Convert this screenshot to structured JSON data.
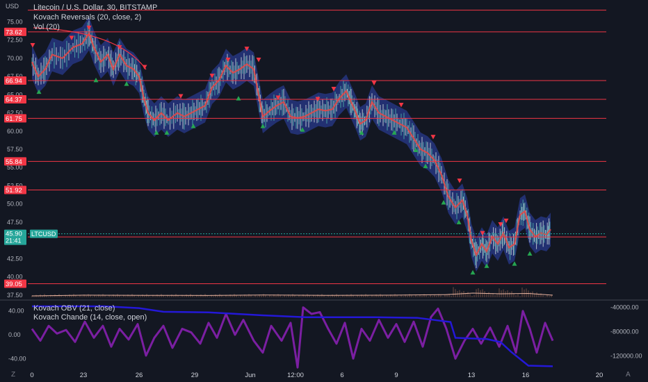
{
  "chart_data": [
    {
      "type": "candlestick",
      "symbol_title": "Litecoin / U.S. Dollar, 30, BITSTAMP",
      "indicators": [
        "Kovach Reversals (20, close, 2)",
        "Vol (20)"
      ],
      "unit": "USD",
      "y_axis_side": "left",
      "ylim": [
        37.0,
        78.0
      ],
      "y_ticks": [
        "75.00",
        "72.50",
        "70.00",
        "67.50",
        "65.00",
        "62.50",
        "60.00",
        "57.50",
        "55.00",
        "52.50",
        "50.00",
        "47.50",
        "45.00",
        "42.50",
        "40.00",
        "37.50"
      ],
      "x_ticks": [
        "0",
        "23",
        "26",
        "29",
        "Jun",
        "12:00",
        "6",
        "9",
        "13",
        "16",
        "20"
      ],
      "horizontal_levels": [
        {
          "value": 76.6,
          "label": ""
        },
        {
          "value": 73.62,
          "label": "73.62"
        },
        {
          "value": 66.94,
          "label": "66.94"
        },
        {
          "value": 64.37,
          "label": "64.37"
        },
        {
          "value": 61.75,
          "label": "61.75"
        },
        {
          "value": 55.84,
          "label": "55.84"
        },
        {
          "value": 51.92,
          "label": "51.92"
        },
        {
          "value": 45.48,
          "label": "45.48"
        },
        {
          "value": 39.05,
          "label": "39.05"
        }
      ],
      "current_price": {
        "value": 45.9,
        "label": "45.90",
        "countdown": "21:41",
        "ticker": "LTCUSD"
      },
      "price_path": [
        {
          "x": 46,
          "y": 69.5
        },
        {
          "x": 55,
          "y": 67.5
        },
        {
          "x": 65,
          "y": 68.5
        },
        {
          "x": 75,
          "y": 70.5
        },
        {
          "x": 90,
          "y": 70.0
        },
        {
          "x": 105,
          "y": 71.5
        },
        {
          "x": 118,
          "y": 72.0
        },
        {
          "x": 128,
          "y": 73.4
        },
        {
          "x": 135,
          "y": 71.5
        },
        {
          "x": 145,
          "y": 69.5
        },
        {
          "x": 155,
          "y": 70.5
        },
        {
          "x": 163,
          "y": 68.5
        },
        {
          "x": 172,
          "y": 70.5
        },
        {
          "x": 182,
          "y": 69.0
        },
        {
          "x": 192,
          "y": 68.5
        },
        {
          "x": 200,
          "y": 67.5
        },
        {
          "x": 207,
          "y": 64.5
        },
        {
          "x": 213,
          "y": 62.5
        },
        {
          "x": 222,
          "y": 61.5
        },
        {
          "x": 232,
          "y": 62.5
        },
        {
          "x": 242,
          "y": 61.5
        },
        {
          "x": 255,
          "y": 62.5
        },
        {
          "x": 265,
          "y": 62.0
        },
        {
          "x": 275,
          "y": 62.5
        },
        {
          "x": 285,
          "y": 63.0
        },
        {
          "x": 295,
          "y": 63.5
        },
        {
          "x": 305,
          "y": 66.0
        },
        {
          "x": 315,
          "y": 67.0
        },
        {
          "x": 325,
          "y": 69.0
        },
        {
          "x": 335,
          "y": 68.0
        },
        {
          "x": 345,
          "y": 68.5
        },
        {
          "x": 355,
          "y": 69.2
        },
        {
          "x": 365,
          "y": 68.5
        },
        {
          "x": 372,
          "y": 65.0
        },
        {
          "x": 378,
          "y": 62.0
        },
        {
          "x": 388,
          "y": 62.8
        },
        {
          "x": 398,
          "y": 63.5
        },
        {
          "x": 408,
          "y": 64.0
        },
        {
          "x": 418,
          "y": 62.0
        },
        {
          "x": 428,
          "y": 61.8
        },
        {
          "x": 438,
          "y": 62.0
        },
        {
          "x": 448,
          "y": 62.5
        },
        {
          "x": 458,
          "y": 63.0
        },
        {
          "x": 468,
          "y": 62.8
        },
        {
          "x": 478,
          "y": 63.0
        },
        {
          "x": 488,
          "y": 64.5
        },
        {
          "x": 498,
          "y": 65.5
        },
        {
          "x": 505,
          "y": 64.0
        },
        {
          "x": 512,
          "y": 62.5
        },
        {
          "x": 518,
          "y": 61.0
        },
        {
          "x": 526,
          "y": 61.5
        },
        {
          "x": 535,
          "y": 64.0
        },
        {
          "x": 545,
          "y": 62.5
        },
        {
          "x": 555,
          "y": 62.0
        },
        {
          "x": 565,
          "y": 61.5
        },
        {
          "x": 575,
          "y": 61.0
        },
        {
          "x": 585,
          "y": 60.5
        },
        {
          "x": 595,
          "y": 59.0
        },
        {
          "x": 605,
          "y": 57.5
        },
        {
          "x": 615,
          "y": 57.0
        },
        {
          "x": 625,
          "y": 56.0
        },
        {
          "x": 635,
          "y": 54.0
        },
        {
          "x": 645,
          "y": 51.0
        },
        {
          "x": 655,
          "y": 49.5
        },
        {
          "x": 665,
          "y": 50.5
        },
        {
          "x": 672,
          "y": 48.5
        },
        {
          "x": 678,
          "y": 45.0
        },
        {
          "x": 685,
          "y": 43.0
        },
        {
          "x": 693,
          "y": 44.5
        },
        {
          "x": 700,
          "y": 43.5
        },
        {
          "x": 708,
          "y": 45.5
        },
        {
          "x": 716,
          "y": 44.5
        },
        {
          "x": 724,
          "y": 46.0
        },
        {
          "x": 732,
          "y": 44.0
        },
        {
          "x": 740,
          "y": 44.5
        },
        {
          "x": 748,
          "y": 48.5
        },
        {
          "x": 755,
          "y": 49.0
        },
        {
          "x": 762,
          "y": 46.5
        },
        {
          "x": 770,
          "y": 45.5
        },
        {
          "x": 778,
          "y": 46.0
        },
        {
          "x": 786,
          "y": 45.8
        },
        {
          "x": 792,
          "y": 46.5
        }
      ],
      "sell_signals": [
        {
          "x": 47,
          "y": 71.8
        },
        {
          "x": 103,
          "y": 72.8
        },
        {
          "x": 128,
          "y": 74.2
        },
        {
          "x": 172,
          "y": 71.5
        },
        {
          "x": 208,
          "y": 68.8
        },
        {
          "x": 260,
          "y": 64.8
        },
        {
          "x": 305,
          "y": 67.6
        },
        {
          "x": 328,
          "y": 69.8
        },
        {
          "x": 355,
          "y": 71.3
        },
        {
          "x": 372,
          "y": 69.8
        },
        {
          "x": 400,
          "y": 64.6
        },
        {
          "x": 457,
          "y": 64.4
        },
        {
          "x": 480,
          "y": 65.8
        },
        {
          "x": 538,
          "y": 66.6
        },
        {
          "x": 577,
          "y": 63.6
        },
        {
          "x": 623,
          "y": 59.2
        },
        {
          "x": 661,
          "y": 53.2
        },
        {
          "x": 694,
          "y": 46.0
        },
        {
          "x": 720,
          "y": 47.2
        },
        {
          "x": 728,
          "y": 47.7
        }
      ],
      "buy_signals": [
        {
          "x": 56,
          "y": 65.4
        },
        {
          "x": 138,
          "y": 67.0
        },
        {
          "x": 182,
          "y": 66.5
        },
        {
          "x": 225,
          "y": 59.8
        },
        {
          "x": 240,
          "y": 59.8
        },
        {
          "x": 278,
          "y": 60.7
        },
        {
          "x": 343,
          "y": 64.5
        },
        {
          "x": 378,
          "y": 60.7
        },
        {
          "x": 435,
          "y": 60.2
        },
        {
          "x": 520,
          "y": 59.8
        },
        {
          "x": 567,
          "y": 59.8
        },
        {
          "x": 598,
          "y": 57.4
        },
        {
          "x": 612,
          "y": 55.2
        },
        {
          "x": 638,
          "y": 50.2
        },
        {
          "x": 660,
          "y": 47.5
        },
        {
          "x": 680,
          "y": 40.6
        },
        {
          "x": 700,
          "y": 41.5
        },
        {
          "x": 740,
          "y": 41.8
        },
        {
          "x": 762,
          "y": 43.2
        }
      ],
      "volume_line": [
        {
          "x": 46,
          "y": 2.0
        },
        {
          "x": 120,
          "y": 3.0
        },
        {
          "x": 210,
          "y": 2.8
        },
        {
          "x": 300,
          "y": 2.6
        },
        {
          "x": 380,
          "y": 3.2
        },
        {
          "x": 470,
          "y": 2.8
        },
        {
          "x": 560,
          "y": 3.0
        },
        {
          "x": 640,
          "y": 3.8
        },
        {
          "x": 680,
          "y": 6.0
        },
        {
          "x": 720,
          "y": 5.0
        },
        {
          "x": 760,
          "y": 5.5
        },
        {
          "x": 795,
          "y": 3.0
        }
      ]
    },
    {
      "type": "line",
      "series": [
        {
          "name": "Kovach OBV (21, close)",
          "axis": "right",
          "ylim": [
            -140000,
            -30000
          ],
          "y_ticks": [
            "-40000.00",
            "-80000.00",
            "-120000.00"
          ],
          "points": [
            {
              "x": 46,
              "y": -38000
            },
            {
              "x": 150,
              "y": -38000
            },
            {
              "x": 200,
              "y": -41000
            },
            {
              "x": 235,
              "y": -47000
            },
            {
              "x": 300,
              "y": -48000
            },
            {
              "x": 380,
              "y": -53000
            },
            {
              "x": 440,
              "y": -56000
            },
            {
              "x": 540,
              "y": -56000
            },
            {
              "x": 600,
              "y": -57000
            },
            {
              "x": 648,
              "y": -64000
            },
            {
              "x": 655,
              "y": -90000
            },
            {
              "x": 700,
              "y": -92000
            },
            {
              "x": 720,
              "y": -97000
            },
            {
              "x": 735,
              "y": -113000
            },
            {
              "x": 760,
              "y": -136000
            },
            {
              "x": 795,
              "y": -137000
            }
          ]
        },
        {
          "name": "Kovach Chande (14, close, open)",
          "axis": "left",
          "ylim": [
            -56,
            56
          ],
          "y_ticks": [
            "40.00",
            "0.00",
            "-40.00"
          ],
          "points": [
            {
              "x": 46,
              "y": 10
            },
            {
              "x": 58,
              "y": -10
            },
            {
              "x": 70,
              "y": 15
            },
            {
              "x": 82,
              "y": 2
            },
            {
              "x": 95,
              "y": 8
            },
            {
              "x": 108,
              "y": -12
            },
            {
              "x": 122,
              "y": 22
            },
            {
              "x": 135,
              "y": -5
            },
            {
              "x": 148,
              "y": 15
            },
            {
              "x": 160,
              "y": -20
            },
            {
              "x": 172,
              "y": 10
            },
            {
              "x": 185,
              "y": -8
            },
            {
              "x": 198,
              "y": 18
            },
            {
              "x": 210,
              "y": -35
            },
            {
              "x": 222,
              "y": -5
            },
            {
              "x": 235,
              "y": 15
            },
            {
              "x": 248,
              "y": -22
            },
            {
              "x": 262,
              "y": 10
            },
            {
              "x": 275,
              "y": 4
            },
            {
              "x": 288,
              "y": -15
            },
            {
              "x": 300,
              "y": 20
            },
            {
              "x": 312,
              "y": -5
            },
            {
              "x": 325,
              "y": 35
            },
            {
              "x": 338,
              "y": 0
            },
            {
              "x": 350,
              "y": 25
            },
            {
              "x": 365,
              "y": -10
            },
            {
              "x": 378,
              "y": -30
            },
            {
              "x": 390,
              "y": 15
            },
            {
              "x": 405,
              "y": -10
            },
            {
              "x": 418,
              "y": 20
            },
            {
              "x": 428,
              "y": -55
            },
            {
              "x": 436,
              "y": 46
            },
            {
              "x": 448,
              "y": 35
            },
            {
              "x": 460,
              "y": 38
            },
            {
              "x": 472,
              "y": 10
            },
            {
              "x": 484,
              "y": -15
            },
            {
              "x": 496,
              "y": 20
            },
            {
              "x": 508,
              "y": -40
            },
            {
              "x": 520,
              "y": 10
            },
            {
              "x": 532,
              "y": -10
            },
            {
              "x": 545,
              "y": 25
            },
            {
              "x": 558,
              "y": -5
            },
            {
              "x": 570,
              "y": 18
            },
            {
              "x": 582,
              "y": -12
            },
            {
              "x": 595,
              "y": 22
            },
            {
              "x": 608,
              "y": -20
            },
            {
              "x": 620,
              "y": 30
            },
            {
              "x": 630,
              "y": 44
            },
            {
              "x": 642,
              "y": 10
            },
            {
              "x": 655,
              "y": -40
            },
            {
              "x": 668,
              "y": -10
            },
            {
              "x": 680,
              "y": 10
            },
            {
              "x": 692,
              "y": -15
            },
            {
              "x": 705,
              "y": 12
            },
            {
              "x": 718,
              "y": -20
            },
            {
              "x": 730,
              "y": 15
            },
            {
              "x": 742,
              "y": -30
            },
            {
              "x": 752,
              "y": 40
            },
            {
              "x": 762,
              "y": 10
            },
            {
              "x": 772,
              "y": -30
            },
            {
              "x": 784,
              "y": 20
            },
            {
              "x": 795,
              "y": -10
            }
          ]
        }
      ],
      "x_ticks": [
        "0",
        "23",
        "26",
        "29",
        "Jun",
        "12:00",
        "6",
        "9",
        "13",
        "16",
        "20"
      ]
    }
  ],
  "ui": {
    "unit_label": "USD",
    "corner_left": "Z",
    "corner_right": "A",
    "colors": {
      "background": "#131722",
      "level_line": "#f23645",
      "price_line": "#e04848",
      "band_fill": "#283a8c",
      "sell": "#f23645",
      "buy": "#26a651",
      "obv": "#2418d8",
      "chande": "#7b1fa2",
      "volume": "#e8b4a0",
      "current_price_tag": "#26a69a"
    }
  }
}
